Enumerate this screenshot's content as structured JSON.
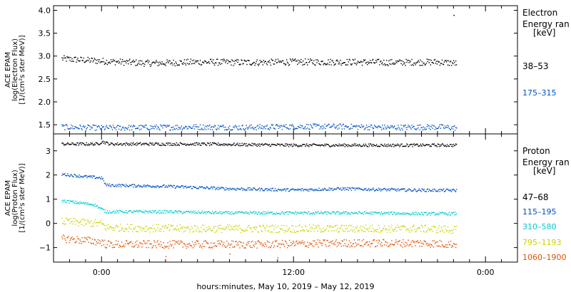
{
  "chart_data": [
    {
      "type": "scatter",
      "panel": "electron",
      "ylabel": [
        "ACE EPAM",
        "log(Electron Flux)",
        "[1/(cm²s ster MeV)]"
      ],
      "ylim": [
        1.3,
        4.1
      ],
      "yticks": [
        1.5,
        2.0,
        2.5,
        3.0,
        3.5,
        4.0
      ],
      "ytick_labels": [
        "1.5",
        "2.0",
        "2.5",
        "3.0",
        "3.5",
        "4.0"
      ],
      "legend_title": [
        "Electron",
        "Energy ran",
        "[keV]"
      ],
      "x_range_hours": [
        -6.0,
        52.0
      ],
      "series": [
        {
          "name": "38–53",
          "color": "#000000",
          "points": [
            [
              -5.0,
              2.95
            ],
            [
              0,
              2.9
            ],
            [
              6,
              2.85
            ],
            [
              12,
              2.88
            ],
            [
              18,
              2.87
            ],
            [
              24,
              2.88
            ],
            [
              30,
              2.88
            ],
            [
              36,
              2.87
            ],
            [
              42,
              2.88
            ],
            [
              44.4,
              2.85
            ]
          ],
          "outliers": [
            [
              44.0,
              3.9
            ]
          ]
        },
        {
          "name": "175–315",
          "color": "#0050c8",
          "points": [
            [
              -5.0,
              1.46
            ],
            [
              0,
              1.44
            ],
            [
              6,
              1.45
            ],
            [
              12,
              1.46
            ],
            [
              18,
              1.45
            ],
            [
              24,
              1.47
            ],
            [
              30,
              1.47
            ],
            [
              36,
              1.45
            ],
            [
              42,
              1.46
            ],
            [
              44.4,
              1.44
            ]
          ]
        }
      ]
    },
    {
      "type": "scatter",
      "panel": "proton",
      "ylabel": [
        "ACE EPAM",
        "log(Proton Flux)",
        "[1/(cm²s ster MeV)]"
      ],
      "ylim": [
        -1.6,
        3.7
      ],
      "yticks": [
        -1,
        0,
        1,
        2,
        3
      ],
      "ytick_labels": [
        "−1",
        "0",
        "1",
        "2",
        "3"
      ],
      "legend_title": [
        "Proton",
        "Energy ran",
        "[keV]"
      ],
      "x_range_hours": [
        -6.0,
        52.0
      ],
      "x_ticks": [
        {
          "h": 0,
          "label": "0:00"
        },
        {
          "h": 24,
          "label": "12:00"
        },
        {
          "h": 48,
          "label": "0:00"
        }
      ],
      "xlabel": "hours:minutes, May 10, 2019 – May 12, 2019",
      "series": [
        {
          "name": "47–68",
          "color": "#000000",
          "points": [
            [
              -5.0,
              3.3
            ],
            [
              -0.5,
              3.3
            ],
            [
              0,
              3.4
            ],
            [
              1.0,
              3.3
            ],
            [
              12,
              3.3
            ],
            [
              24,
              3.25
            ],
            [
              36,
              3.25
            ],
            [
              44.4,
              3.25
            ]
          ]
        },
        {
          "name": "115–195",
          "color": "#0050c8",
          "points": [
            [
              -5.0,
              2.05
            ],
            [
              -2.0,
              1.95
            ],
            [
              0,
              1.9
            ],
            [
              0.5,
              1.6
            ],
            [
              8,
              1.55
            ],
            [
              16,
              1.45
            ],
            [
              24,
              1.4
            ],
            [
              30,
              1.45
            ],
            [
              38,
              1.4
            ],
            [
              44.4,
              1.38
            ]
          ]
        },
        {
          "name": "310–580",
          "color": "#00c8d2",
          "points": [
            [
              -5.0,
              0.95
            ],
            [
              -1.0,
              0.8
            ],
            [
              0.5,
              0.5
            ],
            [
              8,
              0.5
            ],
            [
              16,
              0.45
            ],
            [
              24,
              0.45
            ],
            [
              32,
              0.45
            ],
            [
              40,
              0.42
            ],
            [
              44.4,
              0.42
            ]
          ]
        },
        {
          "name": "795–1193",
          "color": "#c8d200",
          "points": [
            [
              -5.0,
              0.1
            ],
            [
              0,
              0.0
            ],
            [
              0.5,
              -0.15
            ],
            [
              10,
              -0.2
            ],
            [
              20,
              -0.2
            ],
            [
              30,
              -0.2
            ],
            [
              40,
              -0.2
            ],
            [
              44.4,
              -0.25
            ]
          ]
        },
        {
          "name": "1060–1900",
          "color": "#e05000",
          "points": [
            [
              -5.0,
              -0.6
            ],
            [
              0,
              -0.75
            ],
            [
              0.5,
              -0.85
            ],
            [
              10,
              -0.85
            ],
            [
              20,
              -0.85
            ],
            [
              30,
              -0.8
            ],
            [
              40,
              -0.8
            ],
            [
              44.4,
              -0.85
            ]
          ],
          "outliers": [
            [
              8.0,
              -1.35
            ],
            [
              16.0,
              -1.25
            ],
            [
              22.0,
              -1.4
            ]
          ]
        }
      ]
    }
  ]
}
